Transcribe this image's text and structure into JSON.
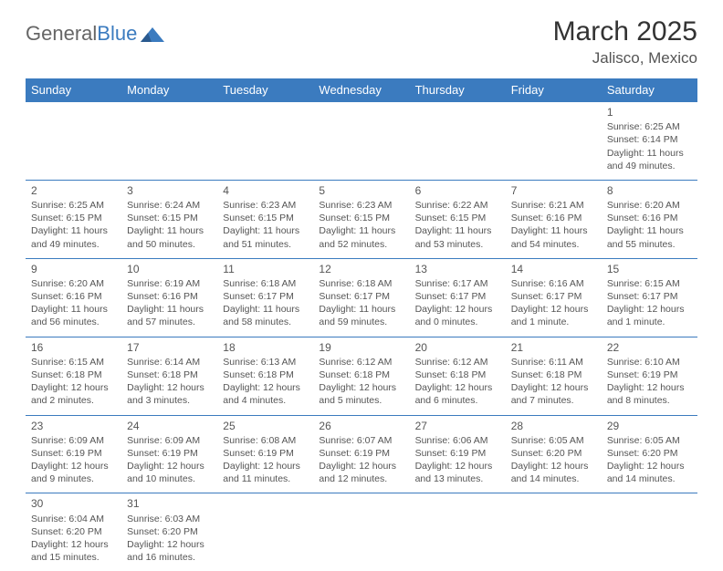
{
  "logo": {
    "text_general": "General",
    "text_blue": "Blue"
  },
  "title": "March 2025",
  "subtitle": "Jalisco, Mexico",
  "colors": {
    "header_bg": "#3b7bbf",
    "header_text": "#ffffff",
    "border": "#3b7bbf",
    "text": "#555555"
  },
  "weekdays": [
    "Sunday",
    "Monday",
    "Tuesday",
    "Wednesday",
    "Thursday",
    "Friday",
    "Saturday"
  ],
  "weeks": [
    [
      null,
      null,
      null,
      null,
      null,
      null,
      {
        "day": "1",
        "sunrise": "6:25 AM",
        "sunset": "6:14 PM",
        "daylight": "11 hours and 49 minutes."
      }
    ],
    [
      {
        "day": "2",
        "sunrise": "6:25 AM",
        "sunset": "6:15 PM",
        "daylight": "11 hours and 49 minutes."
      },
      {
        "day": "3",
        "sunrise": "6:24 AM",
        "sunset": "6:15 PM",
        "daylight": "11 hours and 50 minutes."
      },
      {
        "day": "4",
        "sunrise": "6:23 AM",
        "sunset": "6:15 PM",
        "daylight": "11 hours and 51 minutes."
      },
      {
        "day": "5",
        "sunrise": "6:23 AM",
        "sunset": "6:15 PM",
        "daylight": "11 hours and 52 minutes."
      },
      {
        "day": "6",
        "sunrise": "6:22 AM",
        "sunset": "6:15 PM",
        "daylight": "11 hours and 53 minutes."
      },
      {
        "day": "7",
        "sunrise": "6:21 AM",
        "sunset": "6:16 PM",
        "daylight": "11 hours and 54 minutes."
      },
      {
        "day": "8",
        "sunrise": "6:20 AM",
        "sunset": "6:16 PM",
        "daylight": "11 hours and 55 minutes."
      }
    ],
    [
      {
        "day": "9",
        "sunrise": "6:20 AM",
        "sunset": "6:16 PM",
        "daylight": "11 hours and 56 minutes."
      },
      {
        "day": "10",
        "sunrise": "6:19 AM",
        "sunset": "6:16 PM",
        "daylight": "11 hours and 57 minutes."
      },
      {
        "day": "11",
        "sunrise": "6:18 AM",
        "sunset": "6:17 PM",
        "daylight": "11 hours and 58 minutes."
      },
      {
        "day": "12",
        "sunrise": "6:18 AM",
        "sunset": "6:17 PM",
        "daylight": "11 hours and 59 minutes."
      },
      {
        "day": "13",
        "sunrise": "6:17 AM",
        "sunset": "6:17 PM",
        "daylight": "12 hours and 0 minutes."
      },
      {
        "day": "14",
        "sunrise": "6:16 AM",
        "sunset": "6:17 PM",
        "daylight": "12 hours and 1 minute."
      },
      {
        "day": "15",
        "sunrise": "6:15 AM",
        "sunset": "6:17 PM",
        "daylight": "12 hours and 1 minute."
      }
    ],
    [
      {
        "day": "16",
        "sunrise": "6:15 AM",
        "sunset": "6:18 PM",
        "daylight": "12 hours and 2 minutes."
      },
      {
        "day": "17",
        "sunrise": "6:14 AM",
        "sunset": "6:18 PM",
        "daylight": "12 hours and 3 minutes."
      },
      {
        "day": "18",
        "sunrise": "6:13 AM",
        "sunset": "6:18 PM",
        "daylight": "12 hours and 4 minutes."
      },
      {
        "day": "19",
        "sunrise": "6:12 AM",
        "sunset": "6:18 PM",
        "daylight": "12 hours and 5 minutes."
      },
      {
        "day": "20",
        "sunrise": "6:12 AM",
        "sunset": "6:18 PM",
        "daylight": "12 hours and 6 minutes."
      },
      {
        "day": "21",
        "sunrise": "6:11 AM",
        "sunset": "6:18 PM",
        "daylight": "12 hours and 7 minutes."
      },
      {
        "day": "22",
        "sunrise": "6:10 AM",
        "sunset": "6:19 PM",
        "daylight": "12 hours and 8 minutes."
      }
    ],
    [
      {
        "day": "23",
        "sunrise": "6:09 AM",
        "sunset": "6:19 PM",
        "daylight": "12 hours and 9 minutes."
      },
      {
        "day": "24",
        "sunrise": "6:09 AM",
        "sunset": "6:19 PM",
        "daylight": "12 hours and 10 minutes."
      },
      {
        "day": "25",
        "sunrise": "6:08 AM",
        "sunset": "6:19 PM",
        "daylight": "12 hours and 11 minutes."
      },
      {
        "day": "26",
        "sunrise": "6:07 AM",
        "sunset": "6:19 PM",
        "daylight": "12 hours and 12 minutes."
      },
      {
        "day": "27",
        "sunrise": "6:06 AM",
        "sunset": "6:19 PM",
        "daylight": "12 hours and 13 minutes."
      },
      {
        "day": "28",
        "sunrise": "6:05 AM",
        "sunset": "6:20 PM",
        "daylight": "12 hours and 14 minutes."
      },
      {
        "day": "29",
        "sunrise": "6:05 AM",
        "sunset": "6:20 PM",
        "daylight": "12 hours and 14 minutes."
      }
    ],
    [
      {
        "day": "30",
        "sunrise": "6:04 AM",
        "sunset": "6:20 PM",
        "daylight": "12 hours and 15 minutes."
      },
      {
        "day": "31",
        "sunrise": "6:03 AM",
        "sunset": "6:20 PM",
        "daylight": "12 hours and 16 minutes."
      },
      null,
      null,
      null,
      null,
      null
    ]
  ],
  "labels": {
    "sunrise": "Sunrise:",
    "sunset": "Sunset:",
    "daylight": "Daylight:"
  }
}
